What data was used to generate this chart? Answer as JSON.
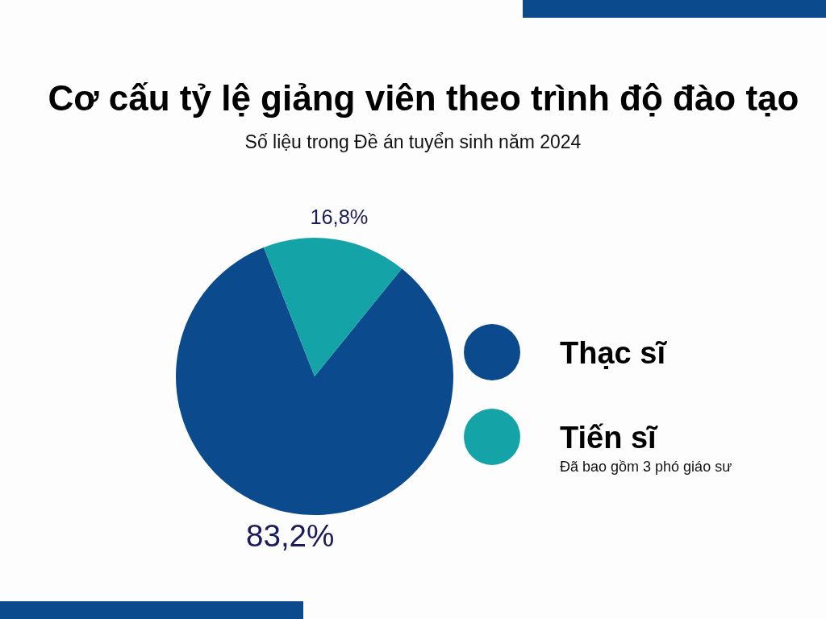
{
  "chart_data": {
    "type": "pie",
    "title": "Cơ cấu tỷ lệ giảng viên theo trình độ đào tạo",
    "subtitle": "Số liệu trong Đề án tuyển sinh năm 2024",
    "categories": [
      "Thạc sĩ",
      "Tiến sĩ"
    ],
    "values": [
      83.2,
      16.8
    ],
    "colors": [
      "#0b4a8c",
      "#14a3a6"
    ],
    "value_labels": [
      "83,2%",
      "16,8%"
    ],
    "legend": "right",
    "annotations": [
      "Đã bao gồm 3 phó giáo sư"
    ]
  }
}
